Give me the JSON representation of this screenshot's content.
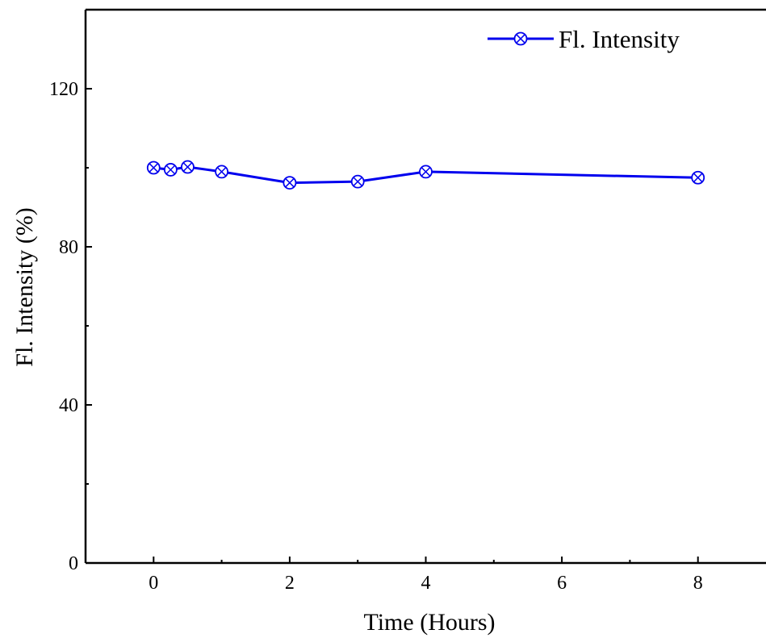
{
  "chart_data": {
    "type": "line",
    "title": "",
    "xlabel": "Time (Hours)",
    "ylabel": "Fl. Intensity (%)",
    "xlim": [
      -1,
      9
    ],
    "ylim": [
      0,
      140
    ],
    "x_ticks": [
      0,
      2,
      4,
      6,
      8
    ],
    "x_tick_labels": [
      "0",
      "2",
      "4",
      "6",
      "8"
    ],
    "y_ticks": [
      0,
      40,
      80,
      120
    ],
    "y_tick_labels": [
      "0",
      "40",
      "80",
      "120"
    ],
    "grid": false,
    "legend_position": "top-right",
    "series": [
      {
        "name": "Fl. Intensity",
        "color": "#0000ee",
        "marker": "circle-x",
        "x": [
          0,
          0.25,
          0.5,
          1,
          2,
          3,
          4,
          8
        ],
        "y": [
          100,
          99.5,
          100.2,
          99,
          96.2,
          96.5,
          99,
          97.5
        ]
      }
    ]
  }
}
